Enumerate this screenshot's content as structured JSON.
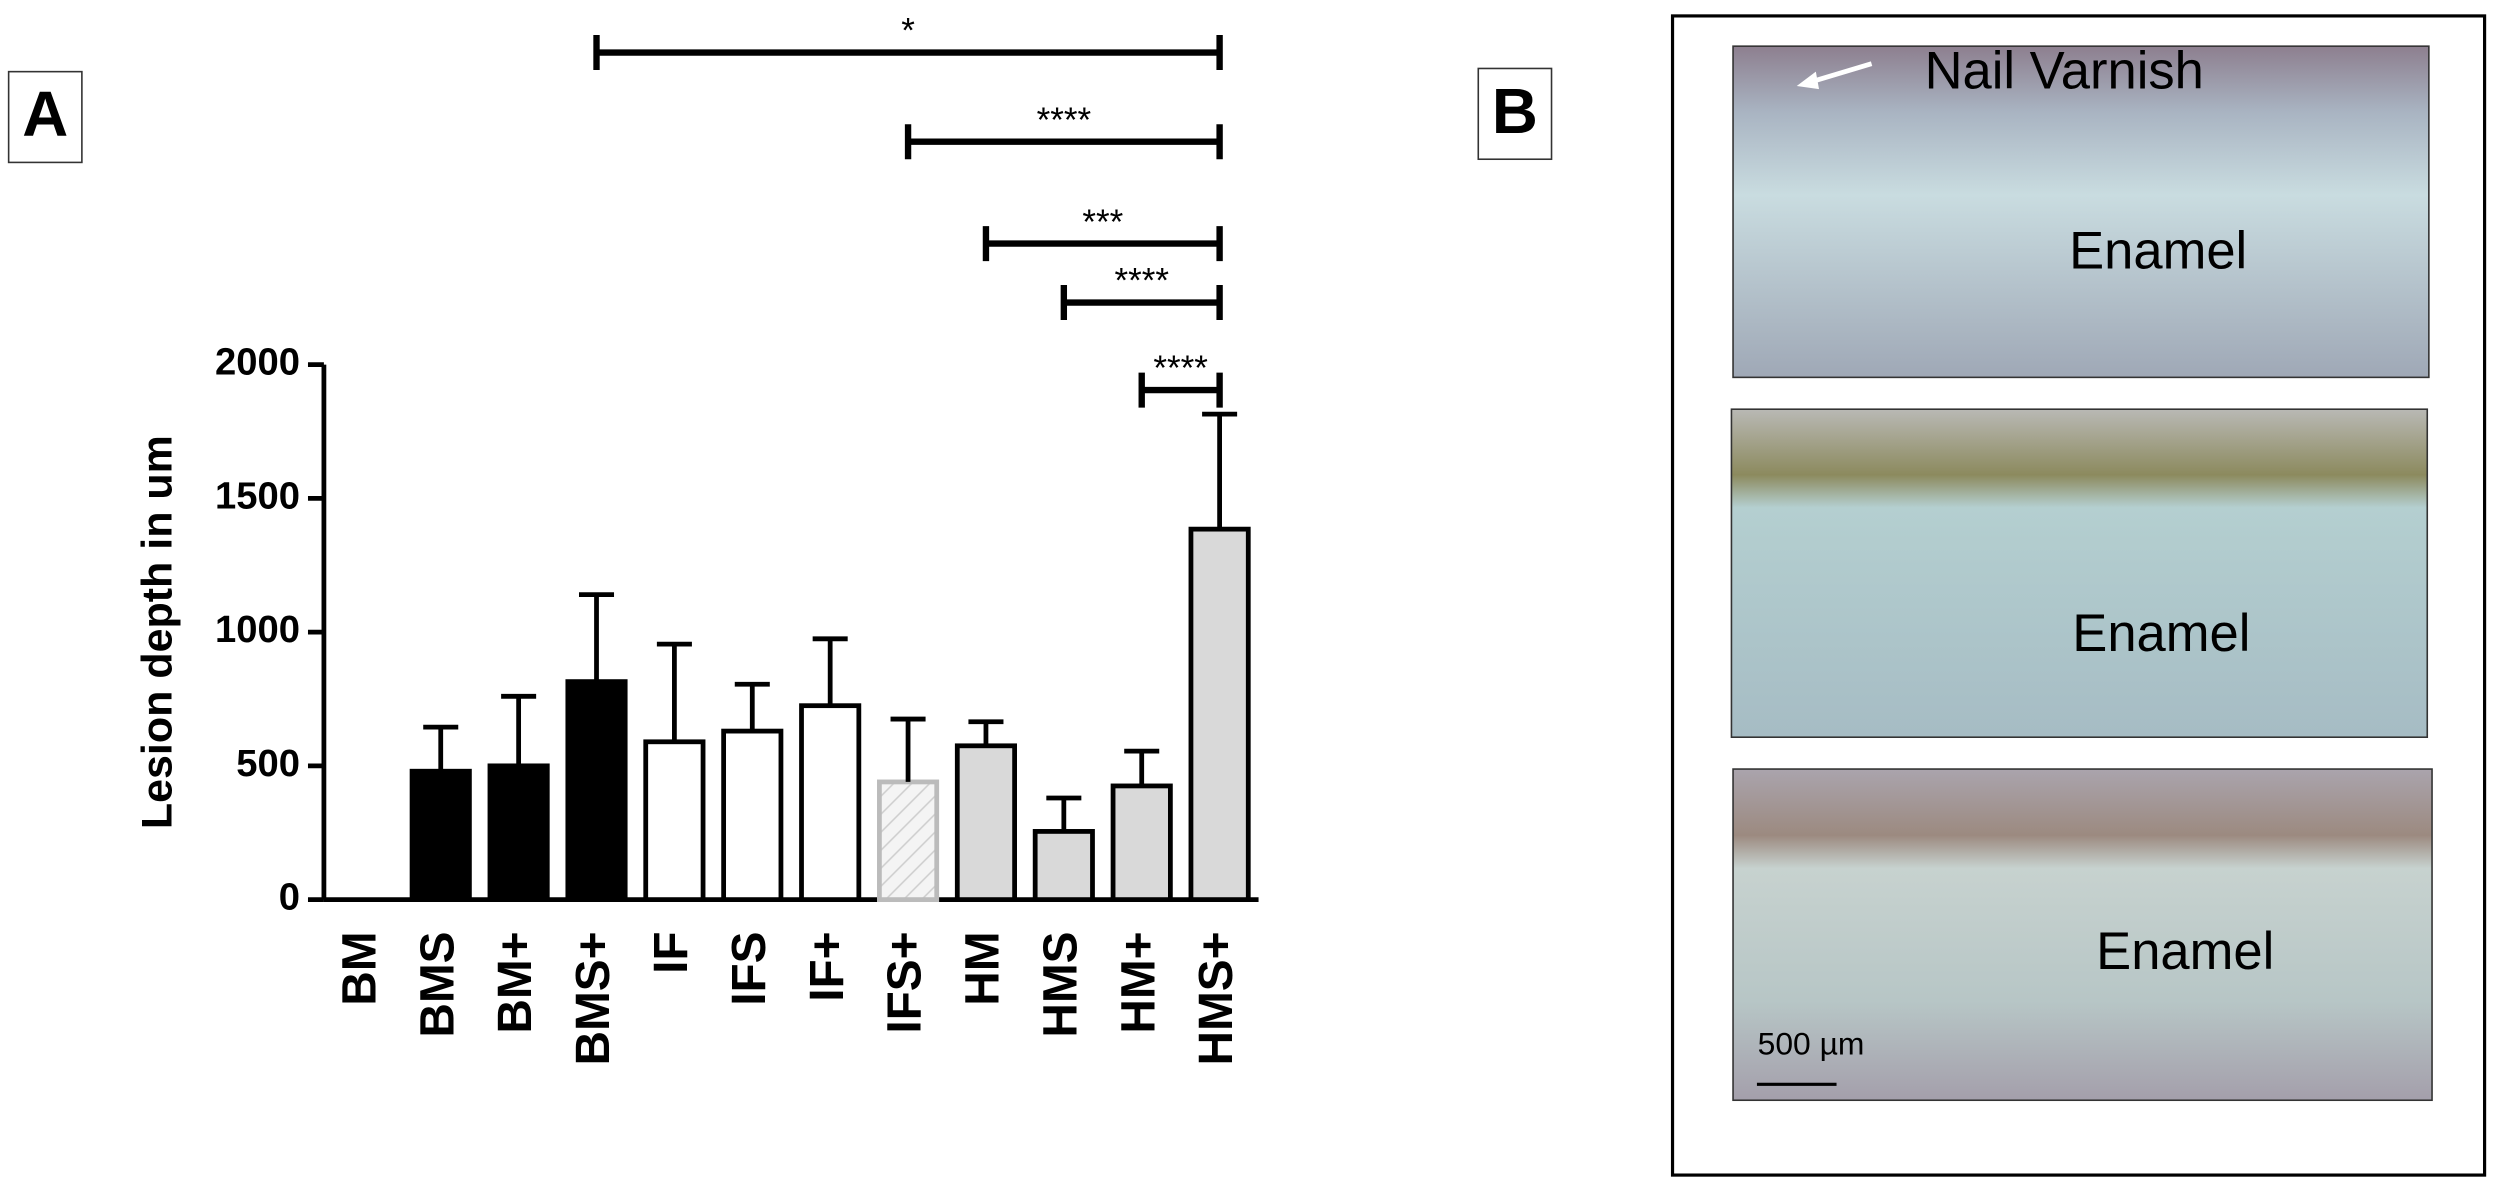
{
  "panels": {
    "a": "A",
    "b": "B"
  },
  "chart_data": {
    "type": "bar",
    "y_label": "Lesion depth in um",
    "categories": [
      "BM",
      "BMS",
      "BM+",
      "BMS+",
      "IF",
      "IFS",
      "IF+",
      "IFS+",
      "HM",
      "HMS",
      "HM+",
      "HMS+"
    ],
    "values": [
      0,
      480,
      500,
      815,
      590,
      630,
      725,
      440,
      575,
      255,
      425,
      1385
    ],
    "errors": [
      null,
      165,
      260,
      325,
      365,
      175,
      250,
      235,
      90,
      125,
      130,
      430
    ],
    "colors": [
      "#000000",
      "#000000",
      "#000000",
      "#000000",
      "#ffffff",
      "#ffffff",
      "#ffffff",
      "#f2f2f2",
      "#d9d9d9",
      "#d9d9d9",
      "#d9d9d9",
      "#d9d9d9"
    ],
    "hatched": "IFS+",
    "ylim": [
      0,
      2000
    ],
    "yticks": [
      0,
      500,
      1000,
      1500,
      2000
    ],
    "comparisons": [
      {
        "from": "BMS+",
        "to": "HMS+",
        "label": "*"
      },
      {
        "from": "IFS+",
        "to": "HMS+",
        "label": "****"
      },
      {
        "from": "HM",
        "to": "HMS+",
        "label": "***"
      },
      {
        "from": "HMS",
        "to": "HMS+",
        "label": "****"
      },
      {
        "from": "HM+",
        "to": "HMS+",
        "label": "****"
      }
    ]
  },
  "micrographs": {
    "annotation": "Nail Varnish",
    "labels": [
      "Enamel",
      "Enamel",
      "Enamel"
    ],
    "scale_bar": "500 µm"
  }
}
